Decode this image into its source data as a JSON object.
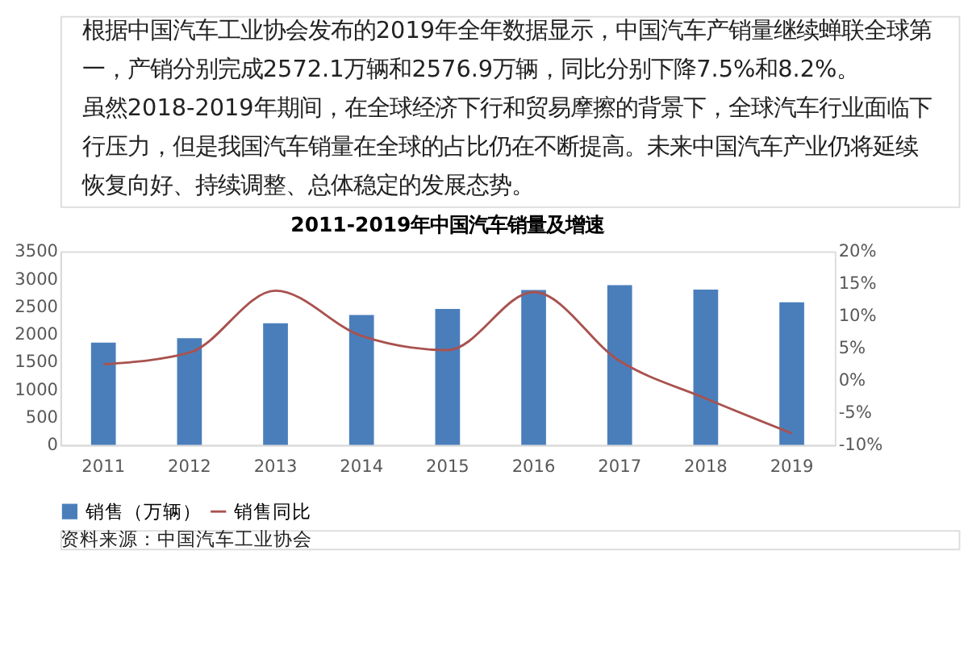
{
  "chart_data": {
    "type": "bar",
    "title": "2011-2019年中国汽车销量及增速",
    "categories": [
      "2011",
      "2012",
      "2013",
      "2014",
      "2015",
      "2016",
      "2017",
      "2018",
      "2019"
    ],
    "series": [
      {
        "name": "销售（万辆）",
        "color": "#4a7ebb",
        "values": [
          1850,
          1930,
          2200,
          2350,
          2460,
          2800,
          2890,
          2810,
          2580
        ]
      },
      {
        "name": "销售同比",
        "type": "line",
        "axis": "y2",
        "color": "#a9524f",
        "values": [
          2.5,
          4.3,
          13.9,
          6.9,
          4.7,
          13.7,
          3.0,
          -2.8,
          -8.2
        ]
      }
    ],
    "ylim": [
      0,
      3500
    ],
    "yticks": [
      0,
      500,
      1000,
      1500,
      2000,
      2500,
      3000,
      3500
    ],
    "y2lim": [
      -10,
      20
    ],
    "y2ticks": [
      {
        "value": -10,
        "label": "-10%"
      },
      {
        "value": -5,
        "label": "-5%"
      },
      {
        "value": 0,
        "label": "0%"
      },
      {
        "value": 5,
        "label": "5%"
      },
      {
        "value": 10,
        "label": "10%"
      },
      {
        "value": 15,
        "label": "15%"
      },
      {
        "value": 20,
        "label": "20%"
      }
    ],
    "grid": false,
    "legend": "bottom",
    "marker": "none",
    "line_style": "solid",
    "annotations": [
      "根据中国汽车工业协会发布的2019年全年数据显示，中国汽车产销量继续蝉联全球第一，产销分别完成2572.1万辆和2576.9万辆，同比分别下降7.5%和8.2%。",
      "虽然2018-2019年期间，在全球经济下行和贸易摩擦的背景下，全球汽车行业面临下行压力，但是我国汽车销量在全球的占比仍在不断提高。未来中国汽车产业仍将延续恢复向好、持续调整、总体稳定的发展态势。",
      "资料来源：中国汽车工业协会"
    ]
  }
}
